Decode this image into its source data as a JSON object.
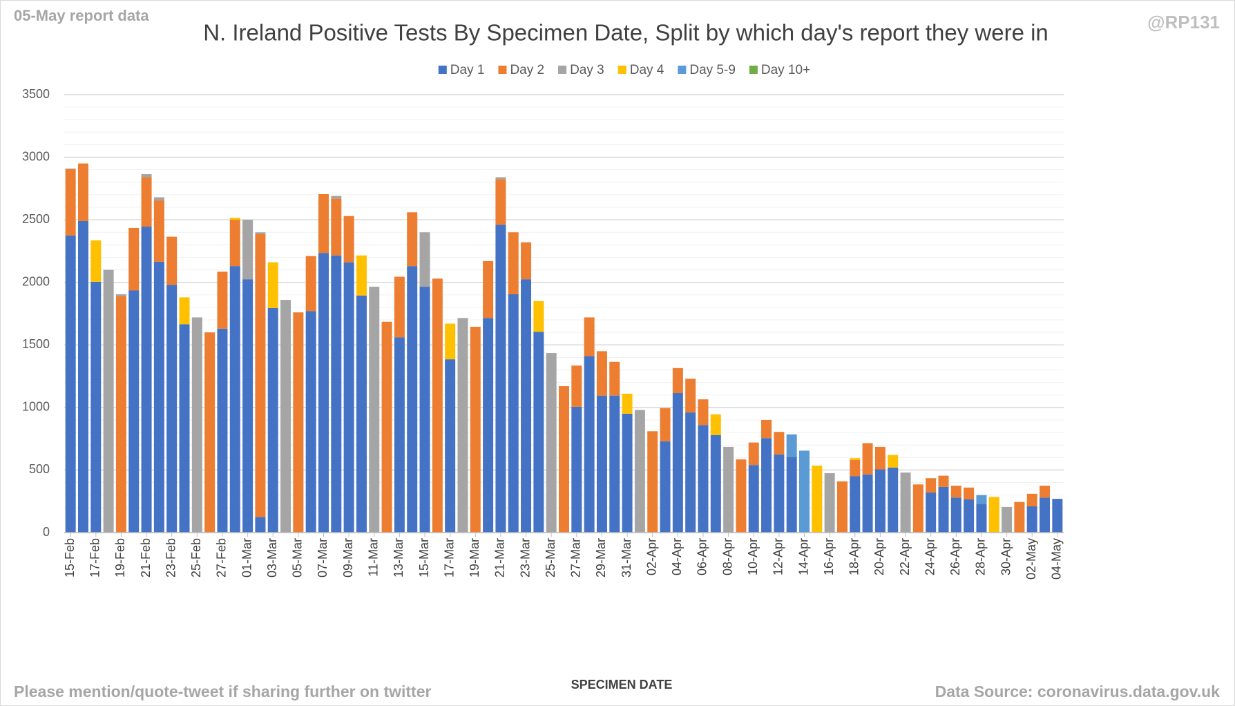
{
  "chart_data": {
    "type": "stacked_bar",
    "title": "N. Ireland Positive Tests By Specimen Date, Split by which day's report they were in",
    "corner_note": "05-May report data",
    "handle": "@RP131",
    "footer_left": "Please mention/quote-tweet if sharing further on twitter",
    "footer_right": "Data Source: coronavirus.data.gov.uk",
    "x_label": "SPECIMEN DATE",
    "categories": [
      "15-Feb",
      null,
      "17-Feb",
      null,
      "19-Feb",
      null,
      "21-Feb",
      null,
      "23-Feb",
      null,
      "25-Feb",
      null,
      "27-Feb",
      null,
      "01-Mar",
      null,
      "03-Mar",
      null,
      "05-Mar",
      null,
      "07-Mar",
      null,
      "09-Mar",
      null,
      "11-Mar",
      null,
      "13-Mar",
      null,
      "15-Mar",
      null,
      "17-Mar",
      null,
      "19-Mar",
      null,
      "21-Mar",
      null,
      "23-Mar",
      null,
      "25-Mar",
      null,
      "27-Mar",
      null,
      "29-Mar",
      null,
      "31-Mar",
      null,
      "02-Apr",
      null,
      "04-Apr",
      null,
      "06-Apr",
      null,
      "08-Apr",
      null,
      "10-Apr",
      null,
      "12-Apr",
      null,
      "14-Apr",
      null,
      "16-Apr",
      null,
      "18-Apr",
      null,
      "20-Apr",
      null,
      "22-Apr",
      null,
      "24-Apr",
      null,
      "26-Apr",
      null,
      "28-Apr",
      null,
      "30-Apr",
      null,
      "02-May",
      null,
      "04-May"
    ],
    "series": [
      {
        "name": "Day 1",
        "color": "#4472c4",
        "values": [
          2375,
          2490,
          2005,
          0,
          0,
          1935,
          2445,
          2165,
          1980,
          1665,
          0,
          0,
          1630,
          2130,
          2025,
          125,
          1795,
          0,
          0,
          1770,
          2235,
          2215,
          2160,
          1895,
          0,
          0,
          1560,
          2130,
          1965,
          0,
          1385,
          0,
          0,
          1715,
          2460,
          1905,
          2025,
          1605,
          0,
          0,
          1005,
          1410,
          1095,
          1095,
          950,
          0,
          0,
          730,
          1115,
          960,
          860,
          780,
          0,
          0,
          540,
          755,
          625,
          605,
          0,
          0,
          0,
          0,
          450,
          465,
          505,
          520,
          0,
          0,
          320,
          365,
          280,
          265,
          230,
          0,
          0,
          0,
          210,
          280,
          270
        ]
      },
      {
        "name": "Day 2",
        "color": "#ed7d31",
        "values": [
          530,
          460,
          0,
          0,
          1890,
          500,
          395,
          490,
          385,
          0,
          0,
          1600,
          455,
          370,
          0,
          2260,
          0,
          0,
          1760,
          440,
          470,
          455,
          370,
          0,
          0,
          1685,
          485,
          430,
          0,
          2030,
          0,
          0,
          1645,
          455,
          365,
          495,
          295,
          0,
          0,
          1170,
          330,
          310,
          355,
          270,
          0,
          0,
          810,
          265,
          200,
          270,
          205,
          0,
          0,
          585,
          180,
          145,
          180,
          0,
          0,
          0,
          0,
          410,
          130,
          250,
          180,
          0,
          0,
          385,
          115,
          90,
          95,
          95,
          0,
          0,
          0,
          245,
          100,
          95,
          0
        ]
      },
      {
        "name": "Day 3",
        "color": "#a5a5a5",
        "values": [
          5,
          0,
          0,
          2100,
          15,
          0,
          25,
          25,
          0,
          0,
          1720,
          0,
          0,
          0,
          475,
          15,
          0,
          1860,
          0,
          0,
          0,
          20,
          0,
          0,
          1965,
          0,
          0,
          0,
          435,
          0,
          0,
          1715,
          0,
          0,
          15,
          0,
          0,
          0,
          1435,
          0,
          0,
          0,
          0,
          0,
          0,
          980,
          0,
          0,
          0,
          0,
          0,
          0,
          685,
          0,
          0,
          0,
          0,
          0,
          0,
          0,
          475,
          0,
          0,
          0,
          0,
          0,
          480,
          0,
          0,
          0,
          0,
          0,
          0,
          0,
          205,
          0,
          0,
          0,
          0
        ]
      },
      {
        "name": "Day 4",
        "color": "#ffc000",
        "values": [
          0,
          0,
          330,
          0,
          0,
          0,
          0,
          0,
          0,
          215,
          0,
          0,
          0,
          15,
          0,
          0,
          365,
          0,
          0,
          0,
          0,
          0,
          0,
          320,
          0,
          0,
          0,
          0,
          0,
          0,
          285,
          0,
          0,
          0,
          0,
          0,
          0,
          245,
          0,
          0,
          0,
          0,
          0,
          0,
          160,
          0,
          0,
          0,
          0,
          0,
          0,
          165,
          0,
          0,
          0,
          0,
          0,
          0,
          0,
          535,
          0,
          0,
          15,
          0,
          0,
          100,
          0,
          0,
          0,
          0,
          0,
          0,
          0,
          285,
          0,
          0,
          0,
          0,
          0
        ]
      },
      {
        "name": "Day 5-9",
        "color": "#5b9bd5",
        "values": [
          0,
          0,
          0,
          0,
          0,
          0,
          0,
          0,
          0,
          0,
          0,
          0,
          0,
          0,
          0,
          0,
          0,
          0,
          0,
          0,
          0,
          0,
          0,
          0,
          0,
          0,
          0,
          0,
          0,
          0,
          0,
          0,
          0,
          0,
          0,
          0,
          0,
          0,
          0,
          0,
          0,
          0,
          0,
          0,
          0,
          0,
          0,
          0,
          0,
          0,
          0,
          0,
          0,
          0,
          0,
          0,
          0,
          180,
          655,
          0,
          0,
          0,
          0,
          0,
          0,
          0,
          0,
          0,
          0,
          0,
          0,
          0,
          70,
          0,
          0,
          0,
          0,
          0,
          0
        ]
      },
      {
        "name": "Day 10+",
        "color": "#70ad47",
        "values": [
          0,
          0,
          0,
          0,
          0,
          0,
          0,
          0,
          0,
          0,
          0,
          0,
          0,
          0,
          0,
          0,
          0,
          0,
          0,
          0,
          0,
          0,
          0,
          0,
          0,
          0,
          0,
          0,
          0,
          0,
          0,
          0,
          0,
          0,
          0,
          0,
          0,
          0,
          0,
          0,
          0,
          0,
          0,
          0,
          0,
          0,
          0,
          0,
          0,
          0,
          0,
          0,
          0,
          0,
          0,
          0,
          0,
          0,
          0,
          0,
          0,
          0,
          0,
          0,
          0,
          0,
          0,
          0,
          0,
          0,
          0,
          0,
          0,
          0,
          0,
          0,
          0,
          0,
          0
        ]
      }
    ],
    "ylim": [
      0,
      3500
    ],
    "yticks": [
      0,
      500,
      1000,
      1500,
      2000,
      2500,
      3000,
      3500
    ],
    "minor_ytick_step": 100,
    "grid": true,
    "legend": "top"
  }
}
